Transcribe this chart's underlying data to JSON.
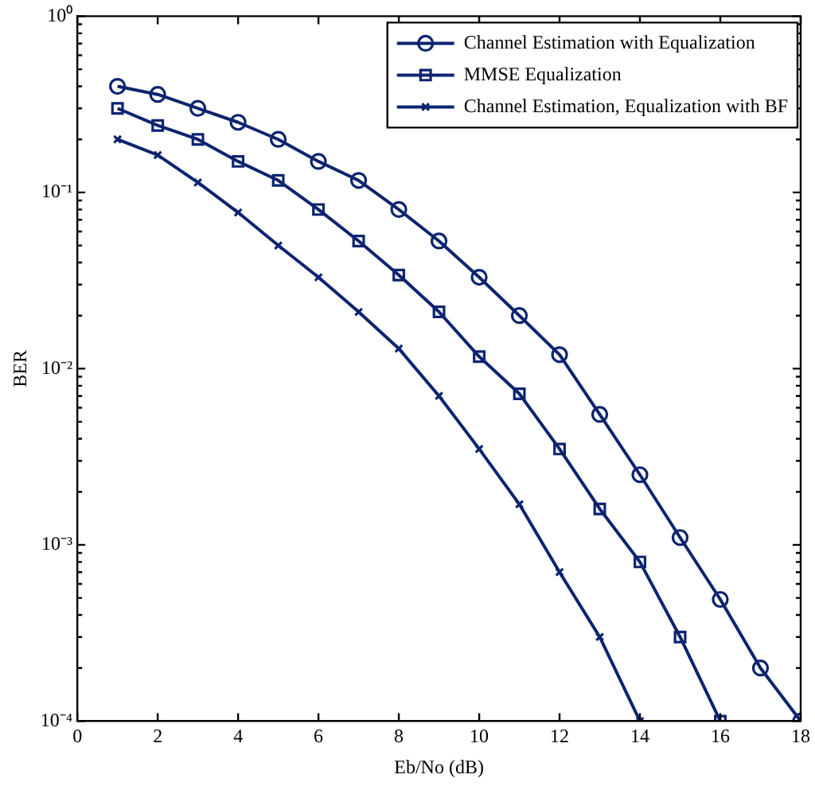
{
  "chart_data": {
    "type": "line",
    "xlabel": "Eb/No (dB)",
    "ylabel": "BER",
    "log": "y",
    "grid": false,
    "legend": "top right",
    "line_style": "solid",
    "xlim": [
      0,
      18
    ],
    "xticks": [
      0,
      2,
      4,
      6,
      8,
      10,
      12,
      14,
      16,
      18
    ],
    "ylim": [
      0.0001,
      1
    ],
    "yticks": [
      {
        "value": 0.0001,
        "label": "10⁻⁴"
      },
      {
        "value": 0.001,
        "label": "10⁻³"
      },
      {
        "value": 0.01,
        "label": "10⁻²"
      },
      {
        "value": 0.1,
        "label": "10⁻¹"
      },
      {
        "value": 1,
        "label": "10⁰"
      }
    ],
    "series": [
      {
        "name": "Channel Estimation with Equalization",
        "color": "#0c2470",
        "marker": "circle",
        "x": [
          1,
          2,
          3,
          4,
          5,
          6,
          7,
          8,
          9,
          10,
          11,
          12,
          13,
          14,
          15,
          16,
          17,
          18
        ],
        "values": [
          0.4,
          0.36,
          0.3,
          0.25,
          0.2,
          0.15,
          0.117,
          0.08,
          0.053,
          0.033,
          0.02,
          0.012,
          0.0055,
          0.0025,
          0.0011,
          0.00049,
          0.0002,
          0.0001
        ]
      },
      {
        "name": "MMSE Equalization",
        "color": "#0c2470",
        "marker": "square",
        "x": [
          1,
          2,
          3,
          4,
          5,
          6,
          7,
          8,
          9,
          10,
          11,
          12,
          13,
          14,
          15,
          16
        ],
        "values": [
          0.3,
          0.24,
          0.2,
          0.15,
          0.117,
          0.08,
          0.053,
          0.034,
          0.021,
          0.0117,
          0.0072,
          0.0035,
          0.0016,
          0.0008,
          0.0003,
          0.0001
        ]
      },
      {
        "name": "Channel Estimation, Equalization with BF",
        "color": "#0c2470",
        "marker": "cross",
        "x": [
          1,
          2,
          3,
          4,
          5,
          6,
          7,
          8,
          9,
          10,
          11,
          12,
          13,
          14
        ],
        "values": [
          0.2,
          0.163,
          0.114,
          0.077,
          0.05,
          0.033,
          0.021,
          0.013,
          0.007,
          0.0035,
          0.0017,
          0.0007,
          0.0003,
          0.0001
        ]
      }
    ]
  }
}
